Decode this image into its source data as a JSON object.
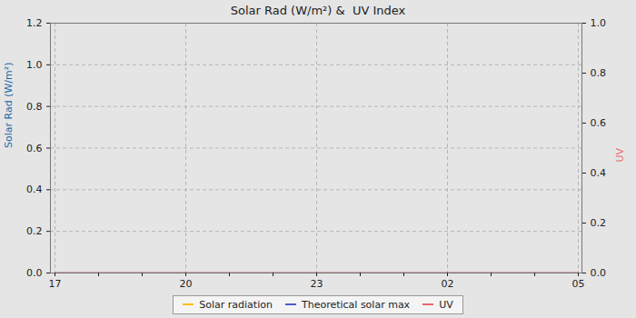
{
  "chart_data": {
    "type": "line",
    "title": "Solar Rad (W/m²) &  UV Index",
    "categories": [
      "17",
      null,
      null,
      "20",
      null,
      null,
      "23",
      null,
      null,
      "02",
      null,
      null,
      "05"
    ],
    "ylabel": "Solar Rad (W/m²)",
    "y2label": "UV",
    "ylim": [
      0,
      1.2
    ],
    "yticks": [
      {
        "value": 0,
        "label": "0.0"
      },
      {
        "value": 0.2,
        "label": "0.2"
      },
      {
        "value": 0.4,
        "label": "0.4"
      },
      {
        "value": 0.6,
        "label": "0.6"
      },
      {
        "value": 0.8,
        "label": "0.8"
      },
      {
        "value": 1,
        "label": "1.0"
      },
      {
        "value": 1.2,
        "label": "1.2"
      }
    ],
    "y2lim": [
      0,
      1
    ],
    "y2ticks": [
      {
        "value": 0,
        "label": "0.0"
      },
      {
        "value": 0.2,
        "label": "0.2"
      },
      {
        "value": 0.4,
        "label": "0.4"
      },
      {
        "value": 0.6,
        "label": "0.6"
      },
      {
        "value": 0.8,
        "label": "0.8"
      },
      {
        "value": 1,
        "label": "1.0"
      }
    ],
    "grid": true,
    "legend": "bottom",
    "series": [
      {
        "name": "Solar radiation",
        "color": "#ffc000",
        "values": [
          0,
          0,
          0,
          0,
          0,
          0,
          0,
          0,
          0,
          0,
          0,
          0,
          0
        ]
      },
      {
        "name": "Theoretical solar max",
        "color": "#4f5bd5",
        "values": [
          0,
          0,
          0,
          0,
          0,
          0,
          0,
          0,
          0,
          0,
          0,
          0,
          0
        ]
      },
      {
        "name": "UV",
        "color": "#e8686a",
        "axis": "y2",
        "values": [
          0,
          0,
          0,
          0,
          0,
          0,
          0,
          0,
          0,
          0,
          0,
          0,
          0
        ]
      }
    ]
  }
}
